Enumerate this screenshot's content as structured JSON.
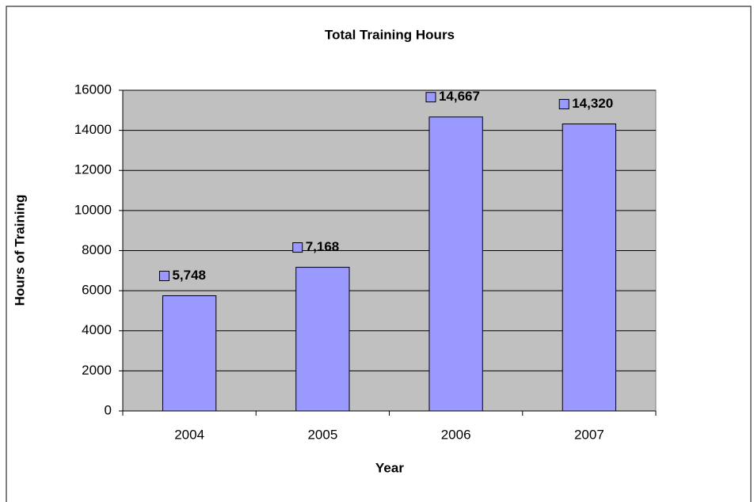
{
  "chart_data": {
    "type": "bar",
    "title": "Total Training Hours",
    "x_label": "Year",
    "y_label": "Hours of Training",
    "categories": [
      "2004",
      "2005",
      "2006",
      "2007"
    ],
    "values": [
      5748,
      7168,
      14667,
      14320
    ],
    "value_labels": [
      "5,748",
      "7,168",
      "14,667",
      "14,320"
    ],
    "color": "#9999ff",
    "ylim": [
      0,
      16000
    ],
    "yticks": [
      0,
      2000,
      4000,
      6000,
      8000,
      10000,
      12000,
      14000,
      16000
    ],
    "grid": true
  }
}
